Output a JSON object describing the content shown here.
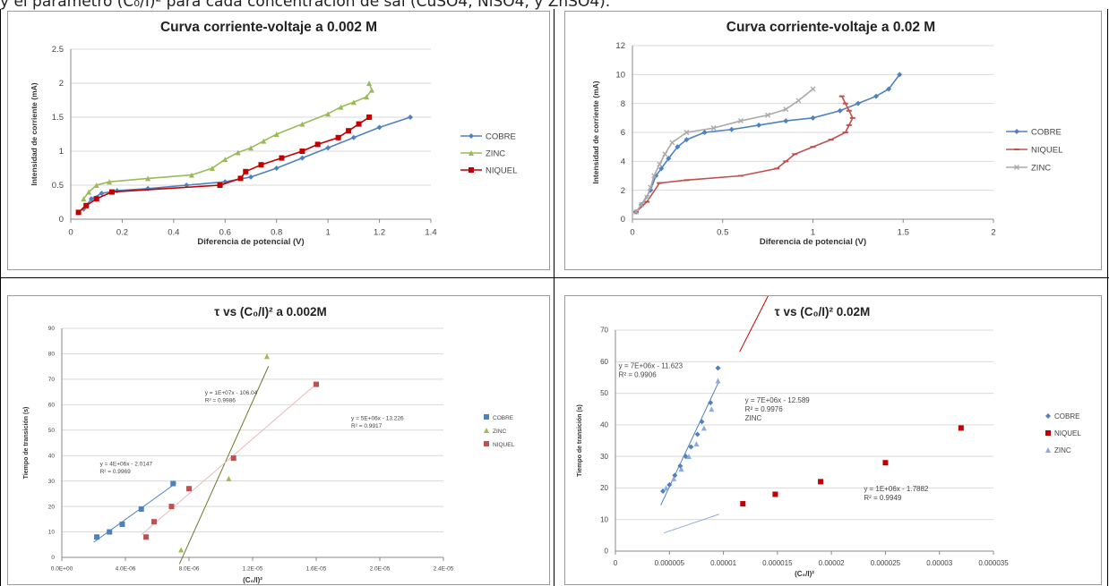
{
  "header_text": "y el parámetro (C₀/I)² para cada concentración de sal (CuSO4, NiSO4, y ZnSO4).",
  "chart_data": [
    {
      "type": "scatter",
      "title": "Curva corriente-voltaje a 0.002 M",
      "xlabel": "Diferencia de potencial (V)",
      "ylabel": "Intensidad de corriente (mA)",
      "xlim": [
        0,
        1.4
      ],
      "ylim": [
        0,
        2.5
      ],
      "xticks": [
        "0",
        "0.2",
        "0.4",
        "0.6",
        "0.8",
        "1",
        "1.2",
        "1.4"
      ],
      "yticks": [
        "0",
        "0.5",
        "1",
        "1.5",
        "2",
        "2.5"
      ],
      "grid": "horizontal",
      "legend": "right",
      "series": [
        {
          "name": "COBRE",
          "color": "#4f81bd",
          "marker": "diamond",
          "x": [
            0.05,
            0.08,
            0.12,
            0.18,
            0.3,
            0.45,
            0.6,
            0.7,
            0.8,
            0.9,
            1.0,
            1.1,
            1.2,
            1.32
          ],
          "y": [
            0.15,
            0.3,
            0.38,
            0.42,
            0.45,
            0.5,
            0.55,
            0.62,
            0.75,
            0.9,
            1.05,
            1.2,
            1.35,
            1.5
          ]
        },
        {
          "name": "ZINC",
          "color": "#9bbb59",
          "marker": "triangle",
          "x": [
            0.05,
            0.07,
            0.1,
            0.15,
            0.3,
            0.47,
            0.55,
            0.6,
            0.65,
            0.7,
            0.75,
            0.8,
            0.9,
            1.0,
            1.05,
            1.1,
            1.15,
            1.17,
            1.16
          ],
          "y": [
            0.3,
            0.4,
            0.5,
            0.55,
            0.6,
            0.65,
            0.75,
            0.88,
            0.98,
            1.05,
            1.15,
            1.25,
            1.4,
            1.55,
            1.65,
            1.72,
            1.8,
            1.9,
            2.0
          ]
        },
        {
          "name": "NIQUEL",
          "color": "#c00000",
          "marker": "square",
          "x": [
            0.03,
            0.06,
            0.1,
            0.16,
            0.58,
            0.66,
            0.68,
            0.74,
            0.82,
            0.9,
            0.96,
            1.04,
            1.08,
            1.12,
            1.16
          ],
          "y": [
            0.1,
            0.2,
            0.3,
            0.4,
            0.5,
            0.6,
            0.7,
            0.8,
            0.9,
            1.0,
            1.1,
            1.2,
            1.3,
            1.4,
            1.5
          ]
        }
      ]
    },
    {
      "type": "scatter",
      "title": "Curva corriente-voltaje a 0.02 M",
      "xlabel": "Diferencia de potencial (V)",
      "ylabel": "Intensidad de corriente (mA)",
      "xlim": [
        0,
        2
      ],
      "ylim": [
        0,
        12
      ],
      "xticks": [
        "0",
        "0.5",
        "1",
        "1.5",
        "2"
      ],
      "yticks": [
        "0",
        "2",
        "4",
        "6",
        "8",
        "10",
        "12"
      ],
      "grid": "horizontal",
      "legend": "right",
      "series": [
        {
          "name": "COBRE",
          "color": "#4f81bd",
          "marker": "diamond",
          "x": [
            0.02,
            0.05,
            0.1,
            0.13,
            0.16,
            0.2,
            0.25,
            0.3,
            0.4,
            0.55,
            0.7,
            0.85,
            1.0,
            1.15,
            1.25,
            1.35,
            1.42,
            1.48
          ],
          "y": [
            0.5,
            1.0,
            2.0,
            3.0,
            3.5,
            4.2,
            5.0,
            5.5,
            6.0,
            6.2,
            6.5,
            6.8,
            7.0,
            7.5,
            8.0,
            8.5,
            9.0,
            10.0
          ]
        },
        {
          "name": "NIQUEL",
          "color": "#c0504d",
          "marker": "dash",
          "x": [
            0.02,
            0.08,
            0.15,
            0.3,
            0.6,
            0.8,
            0.85,
            0.9,
            1.0,
            1.1,
            1.18,
            1.2,
            1.22,
            1.2,
            1.18,
            1.16
          ],
          "y": [
            0.5,
            1.2,
            2.5,
            2.7,
            3.0,
            3.5,
            4.0,
            4.5,
            5.0,
            5.5,
            6.0,
            6.5,
            7.0,
            7.5,
            8.0,
            8.5
          ]
        },
        {
          "name": "ZINC",
          "color": "#aaaaaa",
          "marker": "cross",
          "x": [
            0.02,
            0.05,
            0.08,
            0.1,
            0.12,
            0.15,
            0.18,
            0.22,
            0.3,
            0.45,
            0.6,
            0.75,
            0.85,
            0.92,
            1.0
          ],
          "y": [
            0.5,
            1.0,
            1.5,
            2.2,
            3.0,
            3.8,
            4.5,
            5.3,
            6.0,
            6.3,
            6.8,
            7.2,
            7.6,
            8.2,
            9.0
          ]
        }
      ]
    },
    {
      "type": "scatter",
      "title": "τ vs (C₀/I)² a 0.002M",
      "xlabel": "(C₀/I)²",
      "ylabel": "Tiempo de transición (s)",
      "xlim": [
        0,
        2.4e-05
      ],
      "ylim": [
        0,
        90
      ],
      "xticks": [
        "0.0E+00",
        "4.0E-06",
        "8.0E-06",
        "1.2E-05",
        "1.6E-05",
        "2.0E-05",
        "2.4E-05"
      ],
      "yticks": [
        "0",
        "10",
        "20",
        "30",
        "40",
        "50",
        "60",
        "70",
        "80",
        "90"
      ],
      "grid": "horizontal",
      "legend": "right",
      "series": [
        {
          "name": "COBRE",
          "color": "#4f81bd",
          "marker": "square",
          "x": [
            2.2e-06,
            3e-06,
            3.8e-06,
            5e-06,
            7e-06
          ],
          "y": [
            8,
            10,
            13,
            19,
            29
          ]
        },
        {
          "name": "ZINC",
          "color": "#9bbb59",
          "marker": "triangle",
          "x": [
            7.5e-06,
            1.05e-05,
            1.29e-05
          ],
          "y": [
            3,
            31,
            79
          ]
        },
        {
          "name": "NIQUEL",
          "color": "#c0504d",
          "marker": "square",
          "x": [
            5.3e-06,
            5.8e-06,
            6.9e-06,
            8e-06,
            1.08e-05,
            1.6e-05
          ],
          "y": [
            8,
            14,
            20,
            27,
            39,
            68
          ]
        }
      ],
      "trendlines": [
        {
          "color": "#4f81bd",
          "x": [
            2e-06,
            7.2e-06
          ]
        },
        {
          "color": "#6b7a2f",
          "x": [
            7.4e-06,
            1.3e-05
          ]
        },
        {
          "color": "#e6b9b8",
          "x": [
            5e-06,
            1.6e-05
          ]
        }
      ],
      "annotations": [
        {
          "lines": [
            "y = 4E+06x - 2.0147",
            "R² = 0.9969"
          ],
          "x": 2.4e-06,
          "y": 36
        },
        {
          "lines": [
            "y = 1E+07x - 106.04",
            "R² = 0.9986"
          ],
          "x": 9e-06,
          "y": 64
        },
        {
          "lines": [
            "y = 5E+06x - 13.226",
            "R² = 0.9917"
          ],
          "x": 1.82e-05,
          "y": 54
        }
      ]
    },
    {
      "type": "scatter",
      "title": "τ vs (C₀/I)² 0.02M",
      "xlabel": "(C₀/I)²",
      "ylabel": "Tiempo de transición (s)",
      "xlim": [
        0,
        3.5e-05
      ],
      "ylim": [
        0,
        70
      ],
      "xticks": [
        "0",
        "0.000005",
        "0.00001",
        "0.000015",
        "0.00002",
        "0.000025",
        "0.00003",
        "0.000035"
      ],
      "yticks": [
        "0",
        "10",
        "20",
        "30",
        "40",
        "50",
        "60",
        "70"
      ],
      "grid": "horizontal",
      "legend": "right",
      "series": [
        {
          "name": "COBRE",
          "color": "#4f81bd",
          "marker": "diamond",
          "x": [
            4.4e-06,
            5e-06,
            5.5e-06,
            6e-06,
            6.5e-06,
            7e-06,
            7.6e-06,
            8e-06,
            8.8e-06,
            9.5e-06
          ],
          "y": [
            19,
            21,
            24,
            27,
            30,
            33,
            37,
            41,
            47,
            58
          ]
        },
        {
          "name": "NIQUEL",
          "color": "#c00000",
          "marker": "square",
          "x": [
            1.18e-05,
            1.48e-05,
            1.9e-05,
            2.5e-05,
            3.2e-05
          ],
          "y": [
            15,
            18,
            22,
            28,
            39
          ]
        },
        {
          "name": "ZINC",
          "color": "#8faadc",
          "marker": "triangle",
          "x": [
            4.7e-06,
            5.4e-06,
            6.1e-06,
            6.8e-06,
            7.5e-06,
            8.2e-06,
            8.9e-06,
            9.5e-06
          ],
          "y": [
            20,
            23,
            26,
            30,
            34,
            39,
            45,
            54
          ]
        }
      ],
      "trendlines": [
        {
          "color": "#4f81bd",
          "x": [
            4.2e-06,
            9.6e-06
          ]
        },
        {
          "color": "#8faadc",
          "x": [
            4.5e-06,
            9.6e-06
          ]
        },
        {
          "color": "#c00000",
          "x": [
            1.15e-05,
            3.22e-05
          ]
        }
      ],
      "annotations": [
        {
          "lines": [
            "y = 7E+06x - 11.623",
            "R² = 0.9906"
          ],
          "x": 3e-07,
          "y": 58
        },
        {
          "lines": [
            "y = 7E+06x - 12.589",
            "R² = 0.9976",
            "ZINC"
          ],
          "x": 1.2e-05,
          "y": 47
        },
        {
          "lines": [
            "y = 1E+06x - 1.7882",
            "R² = 0.9949"
          ],
          "x": 2.3e-05,
          "y": 19
        }
      ]
    }
  ]
}
